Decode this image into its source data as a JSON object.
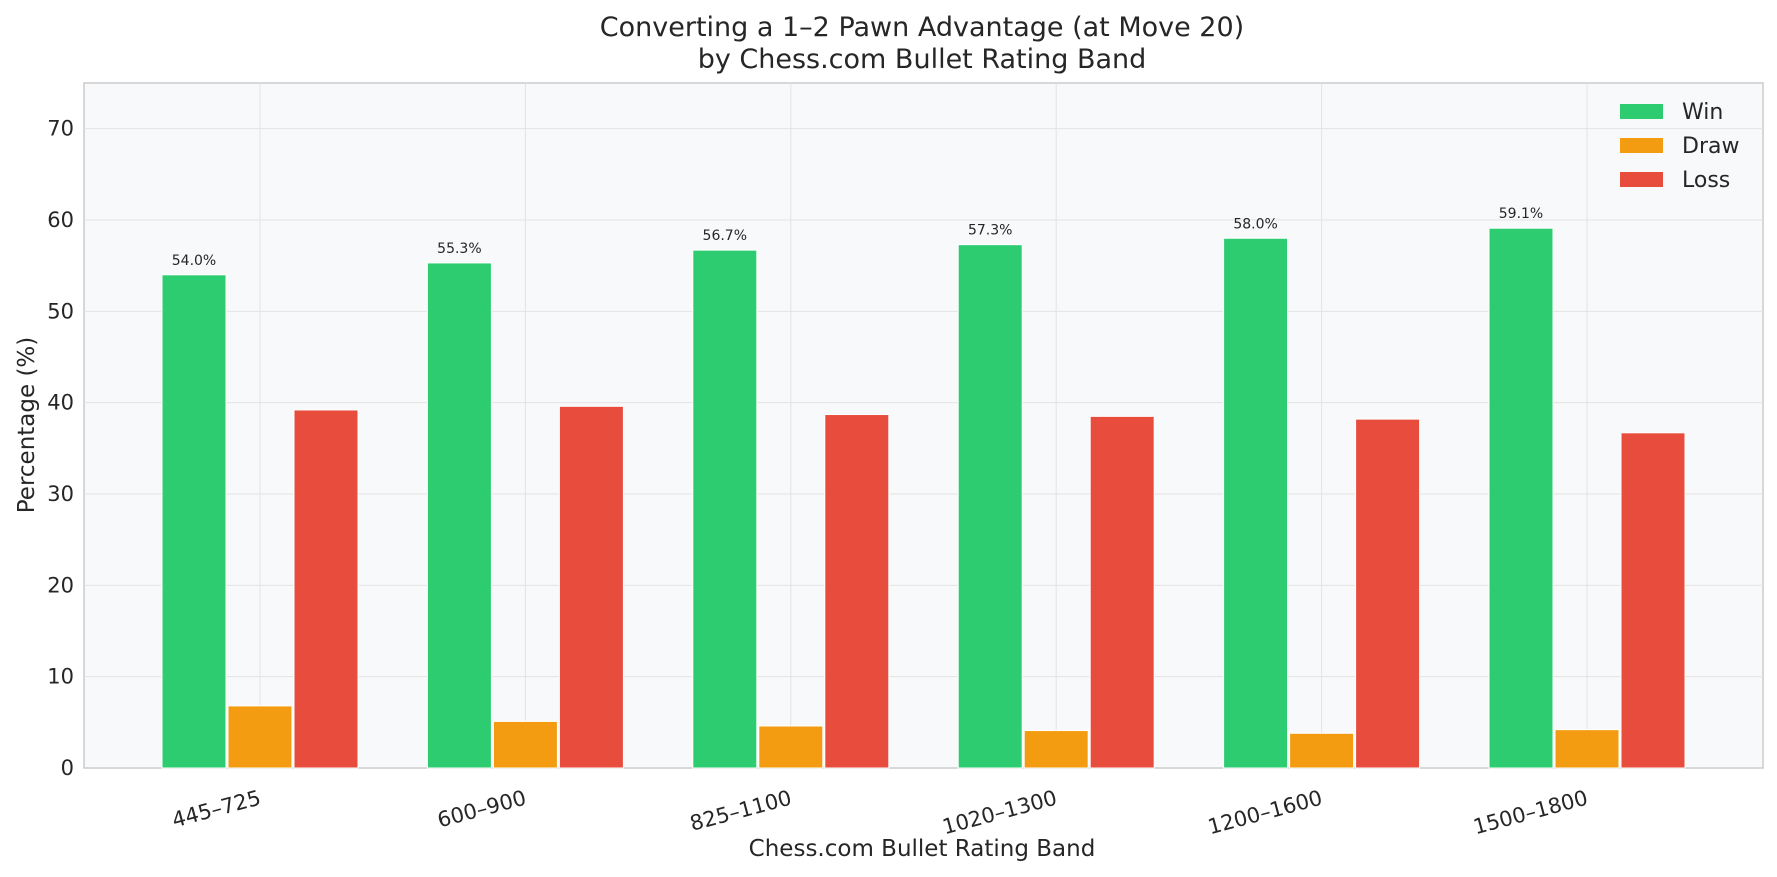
{
  "chart_data": {
    "type": "bar",
    "title": "Converting a 1–2 Pawn Advantage (at Move 20)",
    "subtitle": "by Chess.com Bullet Rating Band",
    "xlabel": "Chess.com Bullet Rating Band",
    "ylabel": "Percentage (%)",
    "ylim": [
      0,
      75
    ],
    "yticks": [
      0,
      10,
      20,
      30,
      40,
      50,
      60,
      70
    ],
    "grid": true,
    "legend_position": "top-right",
    "categories": [
      "445–725",
      "600–900",
      "825–1100",
      "1020–1300",
      "1200–1600",
      "1500–1800"
    ],
    "series": [
      {
        "name": "Win",
        "color": "#2ecc71",
        "values": [
          54.0,
          55.3,
          56.7,
          57.3,
          58.0,
          59.1
        ]
      },
      {
        "name": "Draw",
        "color": "#f39c12",
        "values": [
          6.8,
          5.1,
          4.6,
          4.1,
          3.8,
          4.2
        ]
      },
      {
        "name": "Loss",
        "color": "#e74c3c",
        "values": [
          39.2,
          39.6,
          38.7,
          38.5,
          38.2,
          36.7
        ]
      }
    ],
    "data_labels": [
      "54.0%",
      "55.3%",
      "56.7%",
      "57.3%",
      "58.0%",
      "59.1%"
    ]
  }
}
